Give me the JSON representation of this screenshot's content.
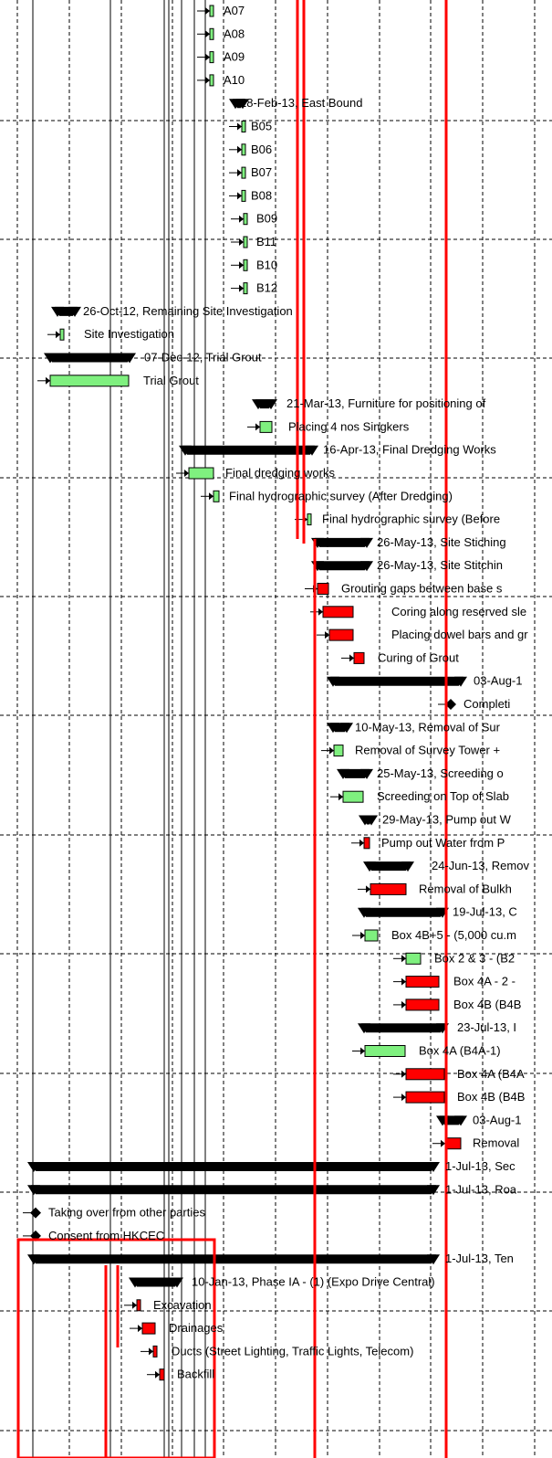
{
  "chart_data": {
    "type": "gantt",
    "tasks": [
      {
        "label": "A07",
        "kind": "task",
        "critical": false
      },
      {
        "label": "A08",
        "kind": "task",
        "critical": false
      },
      {
        "label": "A09",
        "kind": "task",
        "critical": false
      },
      {
        "label": "A10",
        "kind": "task",
        "critical": false
      },
      {
        "label": "28-Feb-13, East Bound",
        "kind": "summary"
      },
      {
        "label": "B05",
        "kind": "task",
        "critical": false
      },
      {
        "label": "B06",
        "kind": "task",
        "critical": false
      },
      {
        "label": "B07",
        "kind": "task",
        "critical": false
      },
      {
        "label": "B08",
        "kind": "task",
        "critical": false
      },
      {
        "label": "B09",
        "kind": "task",
        "critical": false
      },
      {
        "label": "B11",
        "kind": "task",
        "critical": false
      },
      {
        "label": "B10",
        "kind": "task",
        "critical": false
      },
      {
        "label": "B12",
        "kind": "task",
        "critical": false
      },
      {
        "label": "26-Oct-12, Remaining Site Investigation",
        "kind": "summary"
      },
      {
        "label": "Site Investigation",
        "kind": "task",
        "critical": false
      },
      {
        "label": "07-Dec-12, Trial Grout",
        "kind": "summary"
      },
      {
        "label": "Trial Grout",
        "kind": "task",
        "critical": false
      },
      {
        "label": "21-Mar-13, Furniture for positioning of",
        "kind": "summary"
      },
      {
        "label": "Placing 4 nos Singkers",
        "kind": "task",
        "critical": false
      },
      {
        "label": "16-Apr-13, Final Dredging Works",
        "kind": "summary"
      },
      {
        "label": "Final dredging works",
        "kind": "task",
        "critical": false
      },
      {
        "label": "Final hydrographic survey (After Dredging)",
        "kind": "task",
        "critical": false
      },
      {
        "label": "Final hydrographic survey (Before",
        "kind": "task",
        "critical": false
      },
      {
        "label": "26-May-13, Site Stiching",
        "kind": "summary"
      },
      {
        "label": "26-May-13, Site Stitchin",
        "kind": "summary"
      },
      {
        "label": "Grouting gaps between base s",
        "kind": "task",
        "critical": true
      },
      {
        "label": "Coring along reserved sle",
        "kind": "task",
        "critical": true
      },
      {
        "label": "Placing dowel bars and gr",
        "kind": "task",
        "critical": true
      },
      {
        "label": "Curing of Grout",
        "kind": "task",
        "critical": true
      },
      {
        "label": "03-Aug-1",
        "kind": "summary"
      },
      {
        "label": "Completi",
        "kind": "milestone"
      },
      {
        "label": "10-May-13, Removal of Sur",
        "kind": "summary"
      },
      {
        "label": "Removal of Survey Tower +",
        "kind": "task",
        "critical": false
      },
      {
        "label": "25-May-13, Screeding o",
        "kind": "summary"
      },
      {
        "label": "Screeding on Top of Slab",
        "kind": "task",
        "critical": false
      },
      {
        "label": "29-May-13, Pump out W",
        "kind": "summary"
      },
      {
        "label": "Pump out Water from P",
        "kind": "task",
        "critical": true
      },
      {
        "label": "24-Jun-13, Remov",
        "kind": "summary"
      },
      {
        "label": "Removal of Bulkh",
        "kind": "task",
        "critical": true
      },
      {
        "label": "19-Jul-13, C",
        "kind": "summary"
      },
      {
        "label": "Box 4B+5 - (5,000 cu.m",
        "kind": "task",
        "critical": false
      },
      {
        "label": "Box 2 & 3 - (B2",
        "kind": "task",
        "critical": false
      },
      {
        "label": "Box 4A - 2 -",
        "kind": "task",
        "critical": true
      },
      {
        "label": "Box 4B (B4B",
        "kind": "task",
        "critical": true
      },
      {
        "label": "23-Jul-13, I",
        "kind": "summary"
      },
      {
        "label": "Box 4A  (B4A-1)",
        "kind": "task",
        "critical": false
      },
      {
        "label": "Box 4A (B4A",
        "kind": "task",
        "critical": true
      },
      {
        "label": "Box 4B (B4B",
        "kind": "task",
        "critical": true
      },
      {
        "label": "03-Aug-1",
        "kind": "summary"
      },
      {
        "label": "Removal",
        "kind": "task",
        "critical": true
      },
      {
        "label": "1-Jul-13, Sec",
        "kind": "summary"
      },
      {
        "label": "1-Jul-13, Roa",
        "kind": "summary"
      },
      {
        "label": "Taking over from other parties",
        "kind": "milestone"
      },
      {
        "label": "Consent from HKCEC",
        "kind": "milestone"
      },
      {
        "label": "1-Jul-13, Ten",
        "kind": "summary"
      },
      {
        "label": "10-Jan-13, Phase IA - (1) (Expo Drive Central)",
        "kind": "summary"
      },
      {
        "label": "Excavation",
        "kind": "task",
        "critical": true
      },
      {
        "label": "Drainages",
        "kind": "task",
        "critical": true
      },
      {
        "label": "Ducts (Street Lighting, Traffic Lights, Telecom)",
        "kind": "task",
        "critical": true
      },
      {
        "label": "Backfill",
        "kind": "task",
        "critical": true
      }
    ],
    "colors": {
      "normal_task": "#7ff07f",
      "critical_task": "#ff0000",
      "summary": "#000000",
      "critical_path": "#ff0000",
      "grid": "#000000"
    }
  }
}
